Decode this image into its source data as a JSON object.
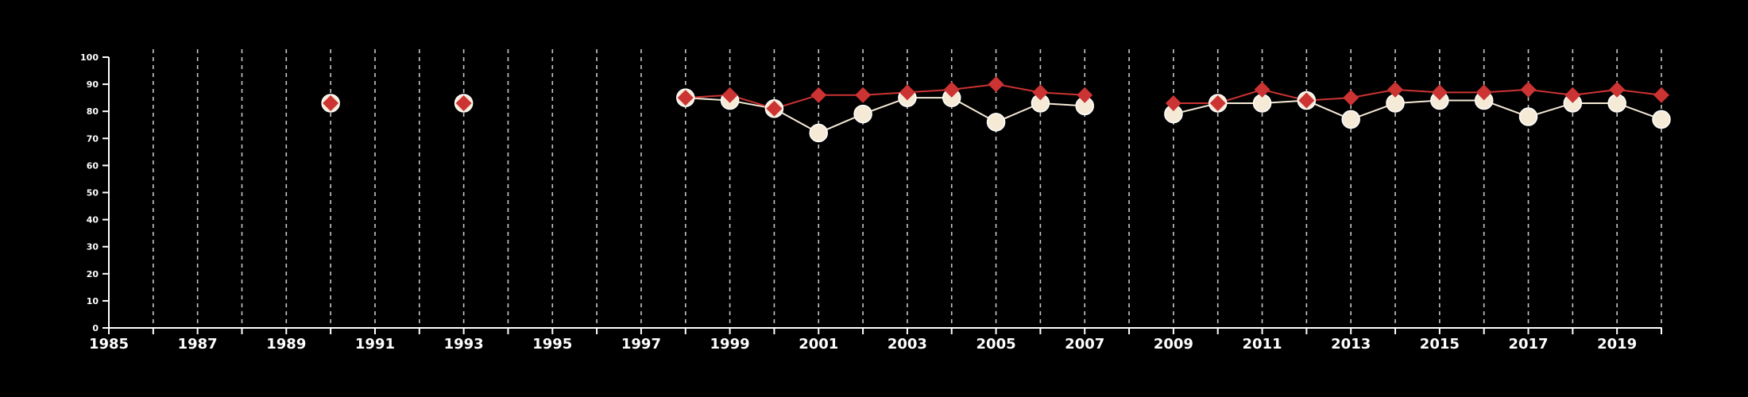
{
  "chart_data": {
    "type": "line",
    "title": "",
    "xlabel": "",
    "ylabel": "",
    "xlim": [
      1985,
      2020
    ],
    "ylim": [
      0,
      100
    ],
    "x_ticks": [
      1985,
      1987,
      1989,
      1991,
      1993,
      1995,
      1997,
      1999,
      2001,
      2003,
      2005,
      2007,
      2009,
      2011,
      2013,
      2015,
      2017,
      2019
    ],
    "y_ticks": [
      0,
      10,
      20,
      30,
      40,
      50,
      60,
      70,
      80,
      90,
      100
    ],
    "grid": "vertical dashed lines at every year",
    "legend": "none",
    "series": [
      {
        "marker": "circle",
        "color": "#f5ead6",
        "points": [
          [
            1990,
            83
          ],
          [
            1993,
            83
          ],
          [
            1998,
            85
          ],
          [
            1999,
            84
          ],
          [
            2000,
            81
          ],
          [
            2001,
            72
          ],
          [
            2002,
            79
          ],
          [
            2003,
            85
          ],
          [
            2004,
            85
          ],
          [
            2005,
            76
          ],
          [
            2006,
            83
          ],
          [
            2007,
            82
          ],
          [
            2009,
            79
          ],
          [
            2010,
            83
          ],
          [
            2011,
            83
          ],
          [
            2012,
            84
          ],
          [
            2013,
            77
          ],
          [
            2014,
            83
          ],
          [
            2015,
            84
          ],
          [
            2016,
            84
          ],
          [
            2017,
            78
          ],
          [
            2018,
            83
          ],
          [
            2019,
            83
          ],
          [
            2020,
            77
          ]
        ]
      },
      {
        "marker": "diamond",
        "color": "#cc3333",
        "points": [
          [
            1990,
            83
          ],
          [
            1993,
            83
          ],
          [
            1998,
            85
          ],
          [
            1999,
            86
          ],
          [
            2000,
            81
          ],
          [
            2001,
            86
          ],
          [
            2002,
            86
          ],
          [
            2003,
            87
          ],
          [
            2004,
            88
          ],
          [
            2005,
            90
          ],
          [
            2006,
            87
          ],
          [
            2007,
            86
          ],
          [
            2009,
            83
          ],
          [
            2010,
            83
          ],
          [
            2011,
            88
          ],
          [
            2012,
            84
          ],
          [
            2013,
            85
          ],
          [
            2014,
            88
          ],
          [
            2015,
            87
          ],
          [
            2016,
            87
          ],
          [
            2017,
            88
          ],
          [
            2018,
            86
          ],
          [
            2019,
            88
          ],
          [
            2020,
            86
          ]
        ]
      }
    ]
  }
}
